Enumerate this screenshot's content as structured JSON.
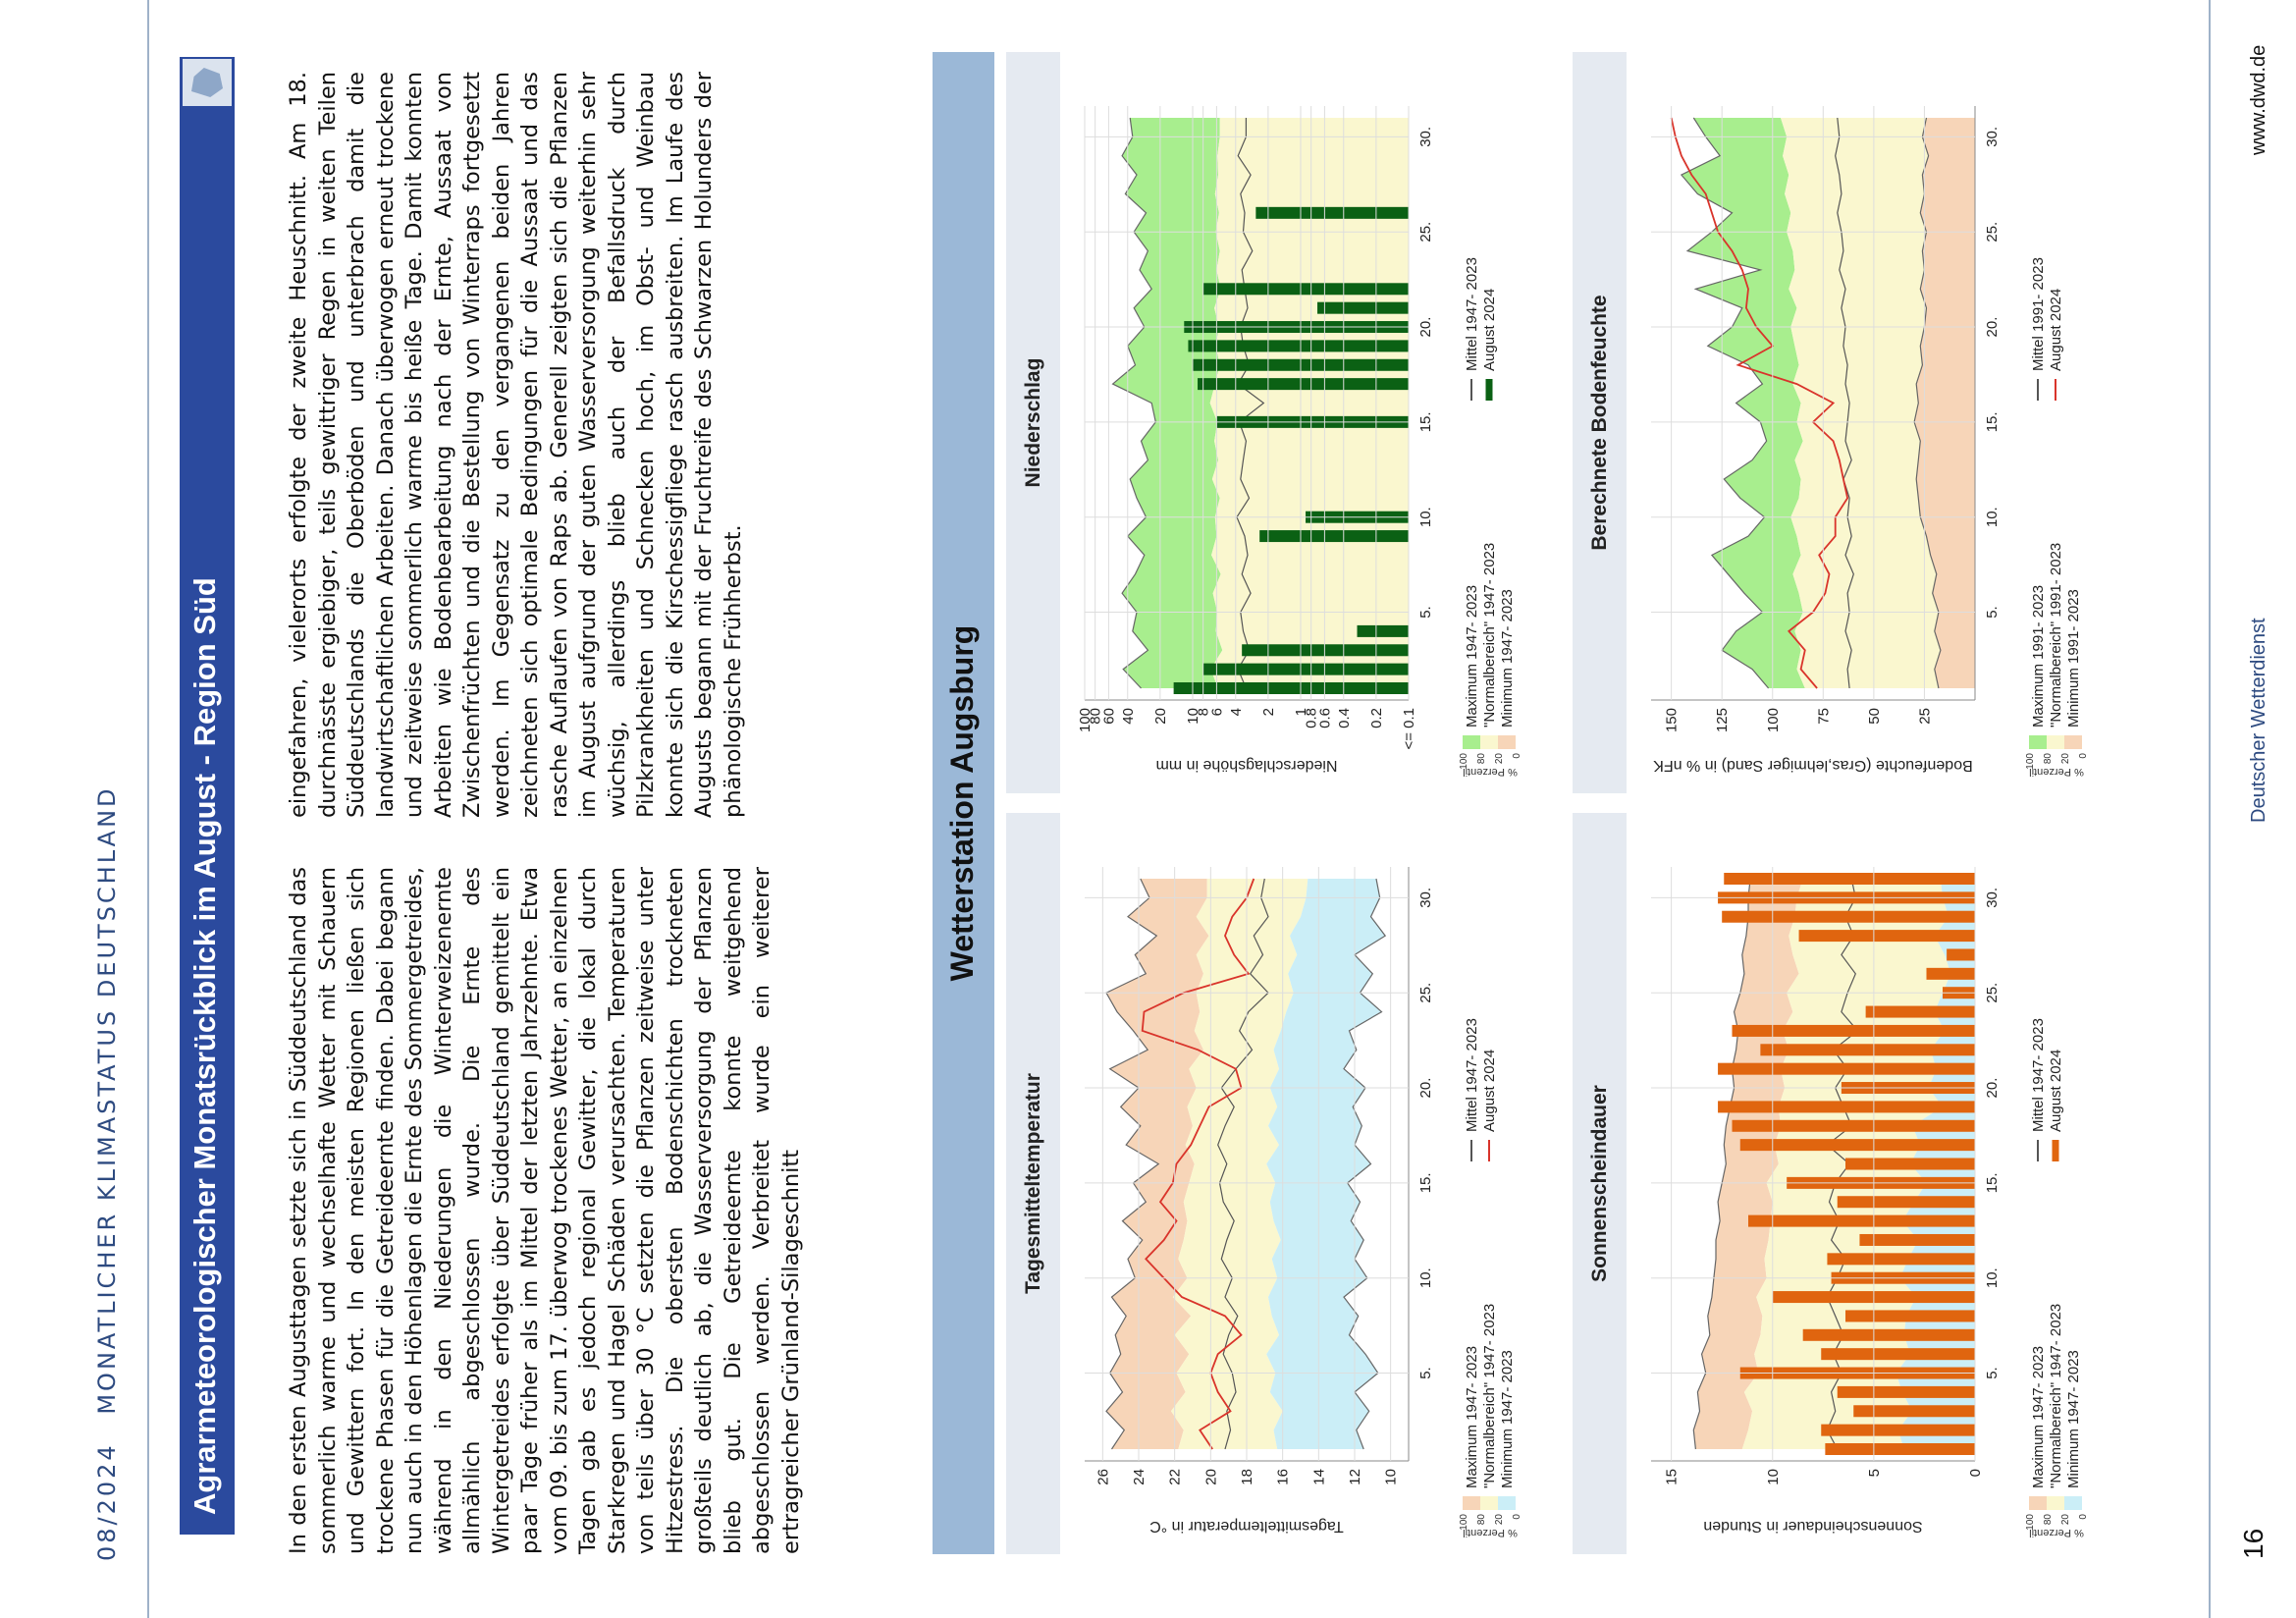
{
  "header": {
    "issue": "08/2024",
    "series": "MONATLICHER KLIMASTATUS DEUTSCHLAND"
  },
  "title": "Agrarmeteorologischer Monatsrückblick im August - Region Süd",
  "body": {
    "col1": "In den ersten Augusttagen setzte sich in Süddeutschland das sommerlich warme und wechselhafte Wetter mit Schauern und Gewittern fort. In den meisten Regionen ließen sich trockene Phasen für die Getreideernte finden. Dabei begann nun auch in den Höhenlagen die Ernte des Sommergetreides, während in den Niederungen die Winterweizenernte allmählich abgeschlossen wurde. Die Ernte des Wintergetreides erfolgte über Süddeutschland gemittelt ein paar Tage früher als im Mittel der letzten Jahrzehnte. Etwa vom 09. bis zum 17. überwog trockenes Wetter, an einzelnen Tagen gab es jedoch regional Gewitter, die lokal durch Starkregen und Hagel Schäden verursachten. Temperaturen von teils über 30 °C setzten die Pflanzen zeitweise unter Hitzestress. Die obersten Bodenschichten trockneten großteils deutlich ab, die Wasserversorgung der Pflanzen blieb gut. Die Getreideernte konnte weitgehend abgeschlossen werden. Verbreitet wurde ein weiterer ertragreicher Grünland-Silageschnitt",
    "col2": "eingefahren, vielerorts erfolgte der zweite Heuschnitt. Am 18. durchnässte ergiebiger, teils gewittriger Regen in weiten Teilen Süddeutschlands die Oberböden und unterbrach damit die landwirtschaftlichen Arbeiten. Danach überwogen erneut trockene und zeitweise sommerlich warme bis heiße Tage. Damit konnten Arbeiten wie Bodenbearbeitung nach der Ernte, Aussaat von Zwischenfrüchten und die Bestellung von Winterraps fortgesetzt werden. Im Gegensatz zu den vergangenen beiden Jahren zeichneten sich optimale Bedingungen für die Aussaat und das rasche Auflaufen von Raps ab. Generell zeigten sich die Pflanzen im August aufgrund der guten Wasserversorgung weiterhin sehr wüchsig, allerdings blieb auch der Befallsdruck durch Pilzkrankheiten und Schnecken hoch, im Obst- und Weinbau konnte sich die Kirschessigfliege rasch ausbreiten. Im Laufe des Augusts begann mit der Fruchtreife des Schwarzen Holunders der phänologische Frühherbst."
  },
  "station": "Wetterstation Augsburg",
  "footer": {
    "page": "16",
    "org": "Deutscher Wetterdienst",
    "url": "www.dwd.de"
  },
  "colors": {
    "navy": "#2b4a9e",
    "station_bar": "#9bb8d7",
    "panel_header": "#e5eaf1",
    "orange_band": "#f7d5b8",
    "yellow_band": "#faf7cf",
    "blue_band": "#cbeef7",
    "green_band": "#a8ee8e",
    "red_line": "#d9342b",
    "green_bar": "#0b6114",
    "orange_bar": "#e0650f"
  },
  "chart_data": [
    {
      "type": "area",
      "title": "Tagesmitteltemperatur",
      "ylabel": "Tagesmitteltemperatur in °C",
      "ylim": [
        9,
        27
      ],
      "yticks": [
        "10",
        "12",
        "14",
        "16",
        "18",
        "20",
        "22",
        "24",
        "26"
      ],
      "xticks": [
        "5.",
        "10.",
        "15.",
        "20.",
        "25.",
        "30."
      ],
      "days": [
        1,
        2,
        3,
        4,
        5,
        6,
        7,
        8,
        9,
        10,
        11,
        12,
        13,
        14,
        15,
        16,
        17,
        18,
        19,
        20,
        21,
        22,
        23,
        24,
        25,
        26,
        27,
        28,
        29,
        30,
        31
      ],
      "max": [
        25.5,
        24.8,
        25.8,
        24.9,
        25.6,
        25.0,
        25.3,
        24.7,
        25.5,
        24.2,
        24.6,
        23.8,
        24.9,
        23.6,
        24.3,
        22.9,
        24.7,
        23.9,
        25.0,
        24.0,
        25.6,
        23.5,
        24.3,
        25.2,
        25.8,
        23.6,
        24.2,
        23.0,
        24.6,
        23.4,
        23.9
      ],
      "p80": [
        21.8,
        21.5,
        22.2,
        21.4,
        21.9,
        21.2,
        22.0,
        21.1,
        22.1,
        21.3,
        21.8,
        21.5,
        21.3,
        21.5,
        21.2,
        20.9,
        21.4,
        21.0,
        21.3,
        20.8,
        21.2,
        20.4,
        20.9,
        20.6,
        20.8,
        20.4,
        20.8,
        20.1,
        20.8,
        20.2,
        20.2
      ],
      "p20": [
        16.3,
        16.5,
        16.0,
        16.7,
        16.4,
        16.9,
        16.2,
        16.6,
        16.8,
        16.3,
        16.6,
        16.1,
        16.5,
        16.7,
        16.4,
        16.9,
        16.2,
        16.8,
        16.3,
        16.7,
        16.2,
        16.5,
        16.1,
        15.8,
        15.4,
        15.7,
        15.2,
        15.6,
        15.0,
        14.7,
        14.6
      ],
      "min": [
        11.5,
        11.9,
        11.2,
        12.0,
        10.7,
        11.4,
        12.3,
        11.8,
        12.6,
        11.3,
        12.0,
        11.5,
        12.2,
        11.7,
        12.4,
        11.1,
        12.0,
        11.6,
        12.1,
        11.4,
        12.6,
        11.9,
        12.3,
        10.5,
        11.7,
        11.0,
        12.0,
        10.3,
        11.1,
        10.6,
        10.8
      ],
      "mean": [
        19.2,
        18.9,
        19.1,
        18.6,
        18.8,
        19.3,
        19.0,
        18.5,
        19.2,
        18.8,
        19.4,
        19.1,
        18.7,
        19.3,
        19.5,
        19.1,
        19.6,
        19.2,
        18.7,
        19.4,
        18.6,
        17.7,
        18.4,
        17.9,
        16.8,
        17.8,
        17.1,
        17.6,
        16.8,
        17.2,
        17.0
      ],
      "august_2024": [
        19.9,
        20.6,
        18.9,
        19.6,
        20.0,
        19.6,
        18.3,
        19.2,
        21.6,
        22.6,
        23.6,
        22.6,
        21.9,
        22.8,
        22.1,
        21.9,
        21.1,
        20.6,
        20.1,
        18.3,
        18.6,
        20.7,
        23.8,
        23.7,
        21.5,
        17.9,
        18.7,
        19.2,
        18.8,
        18.0,
        17.6
      ],
      "legend": {
        "max": "Maximum 1947- 2023",
        "normal": "\"Normalbereich\" 1947- 2023",
        "min": "Minimum 1947- 2023",
        "mean": "Mittel 1947- 2023",
        "current": "August 2024",
        "pct_label": "% Perzentil",
        "pct_values": [
          "100",
          "80",
          "20",
          "0"
        ]
      }
    },
    {
      "type": "bar",
      "title": "Niederschlag",
      "ylabel": "Niederschlagshöhe in mm",
      "yscale": "log",
      "ylim": [
        0.1,
        100
      ],
      "yticks": [
        "<= 0.1",
        "0.2",
        "0.4",
        "0.6",
        "0.8",
        "1",
        "2",
        "4",
        "6",
        "8",
        "10",
        "20",
        "40",
        "60",
        "80",
        "100"
      ],
      "xticks": [
        "5.",
        "10.",
        "15.",
        "20.",
        "25.",
        "30."
      ],
      "days": [
        1,
        2,
        3,
        4,
        5,
        6,
        7,
        8,
        9,
        10,
        11,
        12,
        13,
        14,
        15,
        16,
        17,
        18,
        19,
        20,
        21,
        22,
        23,
        24,
        25,
        26,
        27,
        28,
        29,
        30,
        31
      ],
      "max": [
        30,
        44,
        26,
        36,
        33,
        45,
        34,
        28,
        40,
        27,
        33,
        38,
        26,
        30,
        22,
        24,
        55,
        34,
        40,
        28,
        35,
        24,
        31,
        26,
        35,
        27,
        42,
        33,
        45,
        36,
        38
      ],
      "p80": [
        5.8,
        6.8,
        5.3,
        6.1,
        5.9,
        6.5,
        5.5,
        6.7,
        6.0,
        6.2,
        5.6,
        6.6,
        5.8,
        6.3,
        5.9,
        6.9,
        6.2,
        5.6,
        6.1,
        5.7,
        6.3,
        5.5,
        6.0,
        5.6,
        6.1,
        5.7,
        6.2,
        5.8,
        5.9,
        5.6,
        5.6
      ],
      "p20": [
        0.1,
        0.1,
        0.1,
        0.1,
        0.1,
        0.1,
        0.1,
        0.1,
        0.1,
        0.1,
        0.1,
        0.1,
        0.1,
        0.1,
        0.1,
        0.1,
        0.1,
        0.1,
        0.1,
        0.1,
        0.1,
        0.1,
        0.1,
        0.1,
        0.1,
        0.1,
        0.1,
        0.1,
        0.1,
        0.1,
        0.1
      ],
      "mean": [
        3.2,
        3.8,
        3.0,
        3.4,
        3.6,
        2.9,
        3.5,
        3.1,
        3.3,
        3.9,
        3.0,
        3.6,
        3.4,
        3.2,
        3.7,
        2.2,
        3.8,
        3.0,
        3.4,
        3.6,
        3.1,
        3.3,
        3.5,
        2.8,
        3.4,
        3.3,
        3.6,
        2.9,
        3.8,
        3.2,
        3.2
      ],
      "august_2024": [
        15,
        8,
        3.5,
        0.3,
        0.1,
        0.1,
        0.1,
        0.1,
        2.4,
        0.9,
        0.1,
        0.1,
        0.1,
        0.1,
        6,
        0.1,
        9,
        10,
        11,
        12,
        0.7,
        8,
        0.1,
        0.1,
        0.1,
        2.6,
        0.1,
        0.1,
        0.1,
        0.1,
        0.1
      ],
      "legend": {
        "max": "Maximum 1947- 2023",
        "normal": "\"Normalbereich\" 1947- 2023",
        "min": "Minimum 1947- 2023",
        "mean": "Mittel 1947- 2023",
        "current": "August 2024",
        "pct_label": "% Perzentil",
        "pct_values": [
          "100",
          "80",
          "20",
          "0"
        ]
      }
    },
    {
      "type": "bar",
      "title": "Sonnenscheindauer",
      "ylabel": "Sonnenscheindauer in Stunden",
      "ylim": [
        0,
        16
      ],
      "yticks": [
        "0",
        "5",
        "10",
        "15"
      ],
      "xticks": [
        "5.",
        "10.",
        "15.",
        "20.",
        "25.",
        "30."
      ],
      "days": [
        1,
        2,
        3,
        4,
        5,
        6,
        7,
        8,
        9,
        10,
        11,
        12,
        13,
        14,
        15,
        16,
        17,
        18,
        19,
        20,
        21,
        22,
        23,
        24,
        25,
        26,
        27,
        28,
        29,
        30,
        31
      ],
      "max": [
        13.8,
        13.9,
        13.6,
        13.7,
        13.3,
        13.5,
        13.1,
        13.2,
        13.0,
        12.9,
        12.8,
        12.8,
        12.6,
        12.7,
        12.5,
        12.3,
        12.4,
        12.3,
        12.1,
        11.9,
        12.0,
        11.8,
        11.7,
        11.9,
        11.6,
        11.4,
        11.5,
        11.3,
        11.2,
        11.2,
        11.1
      ],
      "p80": [
        11.5,
        11.2,
        11.0,
        11.4,
        10.7,
        10.9,
        10.6,
        10.5,
        10.8,
        10.3,
        10.4,
        10.2,
        10.1,
        10.0,
        10.3,
        9.7,
        9.9,
        9.6,
        9.7,
        9.4,
        9.6,
        9.2,
        9.5,
        9.0,
        9.3,
        8.7,
        9.0,
        9.2,
        8.9,
        8.8,
        8.5
      ],
      "p20": [
        3.5,
        3.8,
        3.1,
        3.6,
        3.9,
        3.2,
        3.5,
        3.4,
        2.9,
        3.7,
        3.3,
        2.8,
        3.6,
        3.0,
        2.4,
        3.2,
        2.7,
        3.1,
        1.6,
        2.3,
        1.9,
        2.2,
        1.5,
        2.0,
        1.6,
        1.2,
        1.5,
        2.0,
        1.3,
        1.6,
        1.7
      ],
      "mean": [
        6.8,
        7.3,
        6.9,
        7.1,
        6.6,
        7.0,
        6.5,
        6.9,
        7.3,
        6.8,
        6.4,
        7.1,
        6.7,
        7.2,
        6.9,
        6.2,
        7.3,
        6.1,
        6.5,
        6.9,
        6.3,
        7.0,
        5.8,
        6.6,
        6.3,
        5.9,
        6.6,
        6.0,
        6.4,
        5.9,
        6.1
      ],
      "august_2024": [
        7.4,
        7.6,
        6.0,
        6.8,
        11.6,
        7.6,
        8.5,
        6.4,
        10.0,
        7.1,
        7.3,
        5.7,
        11.2,
        6.8,
        9.3,
        6.4,
        11.6,
        12.0,
        12.7,
        6.6,
        12.7,
        10.6,
        12.0,
        5.4,
        1.6,
        2.4,
        1.4,
        8.7,
        12.5,
        12.7,
        12.4
      ],
      "legend": {
        "max": "Maximum 1947- 2023",
        "normal": "\"Normalbereich\" 1947- 2023",
        "min": "Minimum 1947- 2023",
        "mean": "Mittel 1947- 2023",
        "current": "August 2024",
        "pct_label": "% Perzentil",
        "pct_values": [
          "100",
          "80",
          "20",
          "0"
        ]
      }
    },
    {
      "type": "area",
      "title": "Berechnete Bodenfeuchte",
      "ylabel": "Bodenfeuchte (Gras,lehmiger Sand) in % nFK",
      "ylim": [
        0,
        160
      ],
      "yticks": [
        "25",
        "50",
        "75",
        "100",
        "125",
        "150"
      ],
      "xticks": [
        "5.",
        "10.",
        "15.",
        "20.",
        "25.",
        "30."
      ],
      "days": [
        1,
        2,
        3,
        4,
        5,
        6,
        7,
        8,
        9,
        10,
        11,
        12,
        13,
        14,
        15,
        16,
        17,
        18,
        19,
        20,
        21,
        22,
        23,
        24,
        25,
        26,
        27,
        28,
        29,
        30,
        31
      ],
      "max": [
        102,
        110,
        125,
        118,
        105,
        114,
        122,
        130,
        112,
        104,
        116,
        124,
        110,
        103,
        106,
        118,
        105,
        112,
        132,
        120,
        115,
        138,
        106,
        142,
        130,
        120,
        137,
        145,
        126,
        133,
        139
      ],
      "p80": [
        84,
        88,
        86,
        89,
        85,
        87,
        90,
        86,
        88,
        91,
        87,
        86,
        89,
        85,
        88,
        86,
        90,
        87,
        89,
        91,
        88,
        92,
        89,
        90,
        93,
        91,
        94,
        92,
        95,
        93,
        96
      ],
      "p20": [
        18,
        20,
        17,
        20,
        18,
        21,
        19,
        22,
        24,
        27,
        28,
        29,
        28,
        27,
        30,
        28,
        29,
        26,
        27,
        25,
        24,
        27,
        25,
        26,
        24,
        27,
        25,
        26,
        23,
        26,
        24
      ],
      "mean": [
        62,
        63,
        61,
        64,
        62,
        63,
        60,
        64,
        61,
        63,
        62,
        65,
        61,
        64,
        63,
        62,
        64,
        63,
        65,
        64,
        66,
        64,
        67,
        65,
        66,
        68,
        66,
        67,
        69,
        67,
        68
      ],
      "august_2024": [
        78,
        86,
        84,
        92,
        80,
        74,
        72,
        77,
        69,
        69,
        63,
        65,
        67,
        70,
        80,
        70,
        88,
        117,
        100,
        108,
        113,
        112,
        115,
        120,
        127,
        130,
        133,
        140,
        145,
        148,
        150
      ],
      "legend": {
        "max": "Maximum 1991- 2023",
        "normal": "\"Normalbereich\" 1991- 2023",
        "min": "Minimum 1991- 2023",
        "mean": "Mittel 1991- 2023",
        "current": "August 2024",
        "pct_label": "% Perzentil",
        "pct_values": [
          "100",
          "80",
          "20",
          "0"
        ]
      }
    }
  ]
}
